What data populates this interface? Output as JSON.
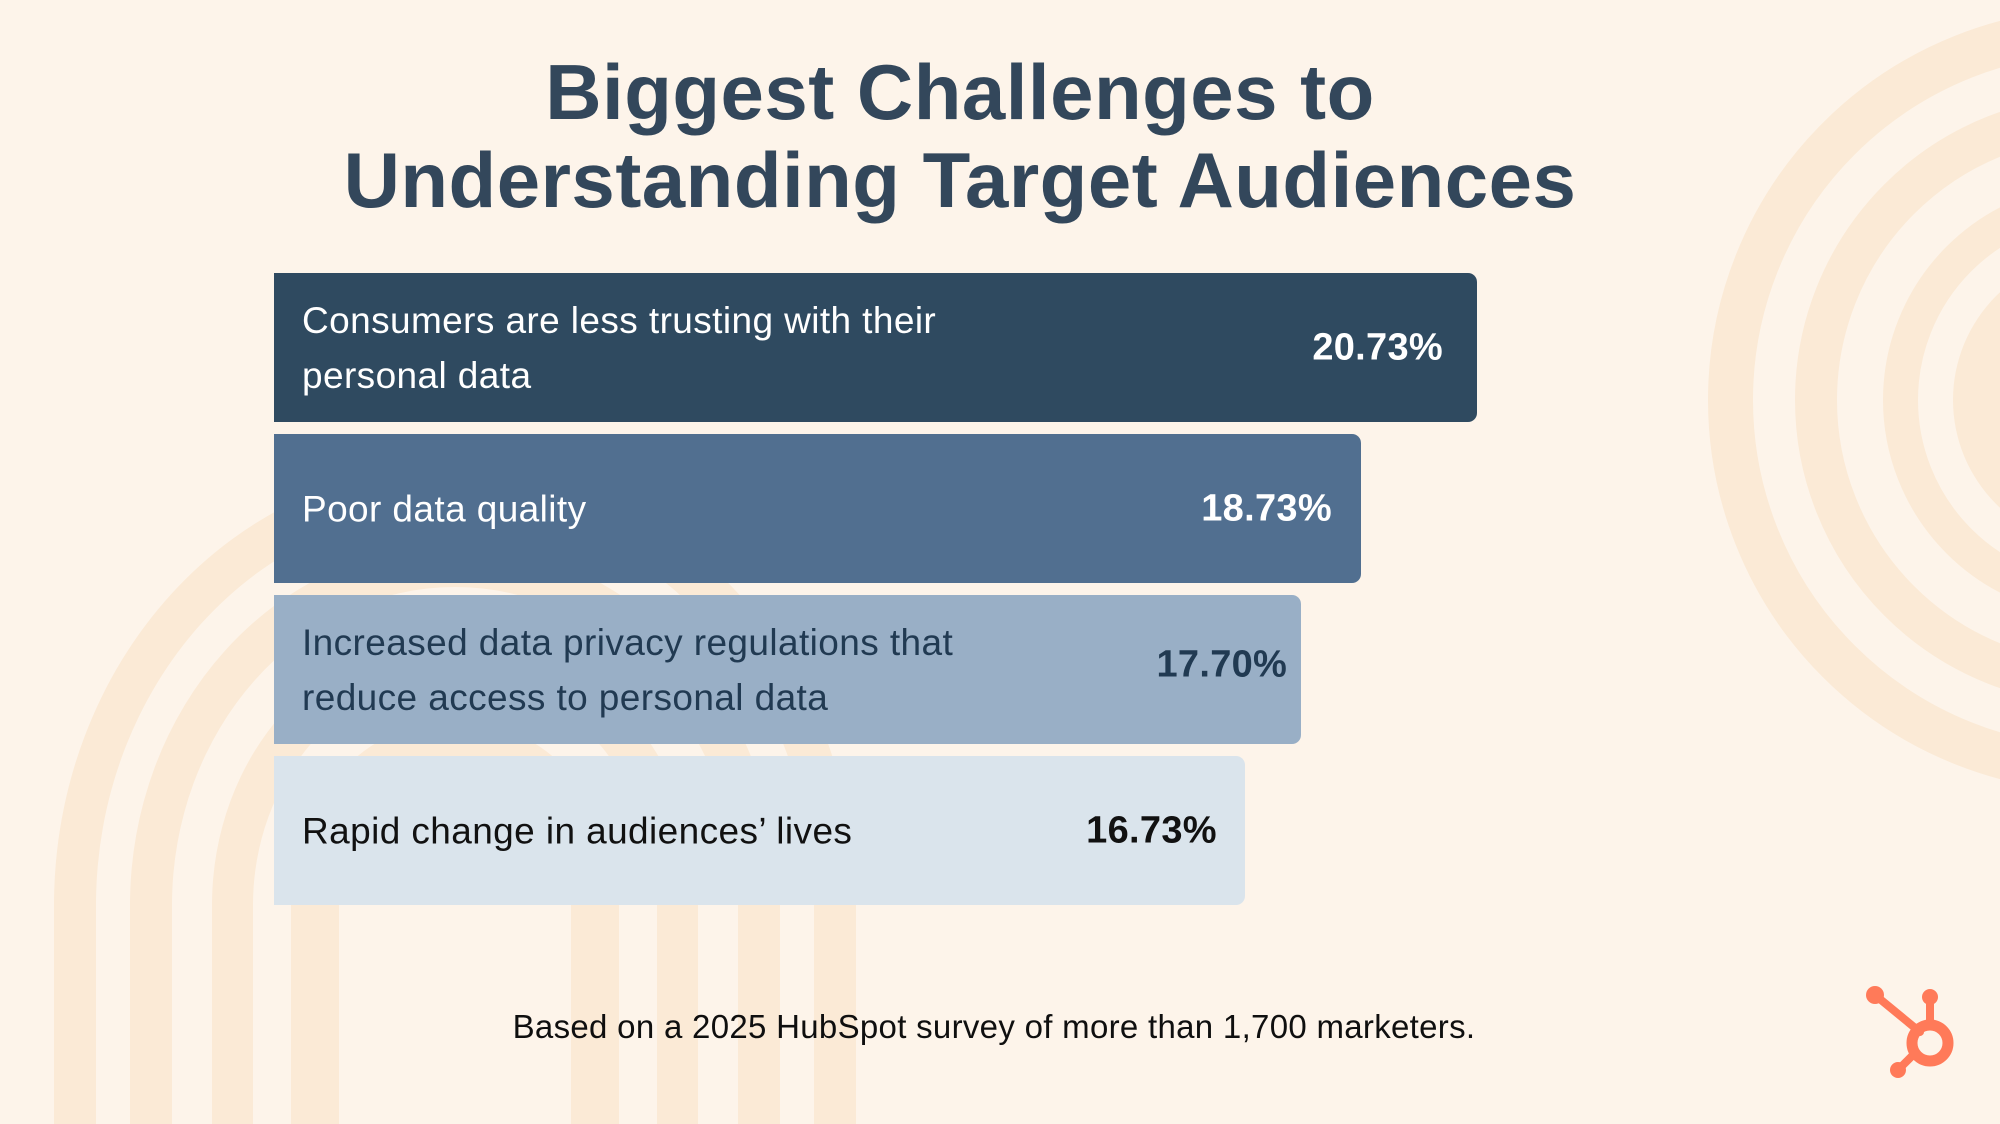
{
  "colors": {
    "background": "#fdf4ea",
    "decor": "#fbead6",
    "title": "#33475b",
    "logo": "#ff7a59"
  },
  "header": {
    "title_lines": [
      "Biggest Challenges to",
      "Understanding Target Audiences"
    ]
  },
  "chart_data": {
    "type": "bar",
    "orientation": "horizontal",
    "title": "Biggest Challenges to Understanding Target Audiences",
    "xlabel": "",
    "ylabel": "",
    "unit": "%",
    "xlim": [
      0,
      20.73
    ],
    "grid": false,
    "legend": "none",
    "categories": [
      "Consumers are less trusting with their personal data",
      "Poor data quality",
      "Increased data privacy regulations that reduce access to personal data",
      "Rapid change in audiences’ lives"
    ],
    "values": [
      20.73,
      18.73,
      17.7,
      16.73
    ],
    "value_labels": [
      "20.73%",
      "18.73%",
      "17.70%",
      "16.73%"
    ],
    "bar_colors": [
      "#2f4a60",
      "#516f90",
      "#99afc6",
      "#dae4ec"
    ],
    "text_colors": [
      "#ffffff",
      "#ffffff",
      "#213a52",
      "#111111"
    ]
  },
  "footer": {
    "note": "Based on a 2025 HubSpot survey of more than 1,700 marketers."
  },
  "logo": {
    "icon": "hubspot-sprocket-icon"
  }
}
